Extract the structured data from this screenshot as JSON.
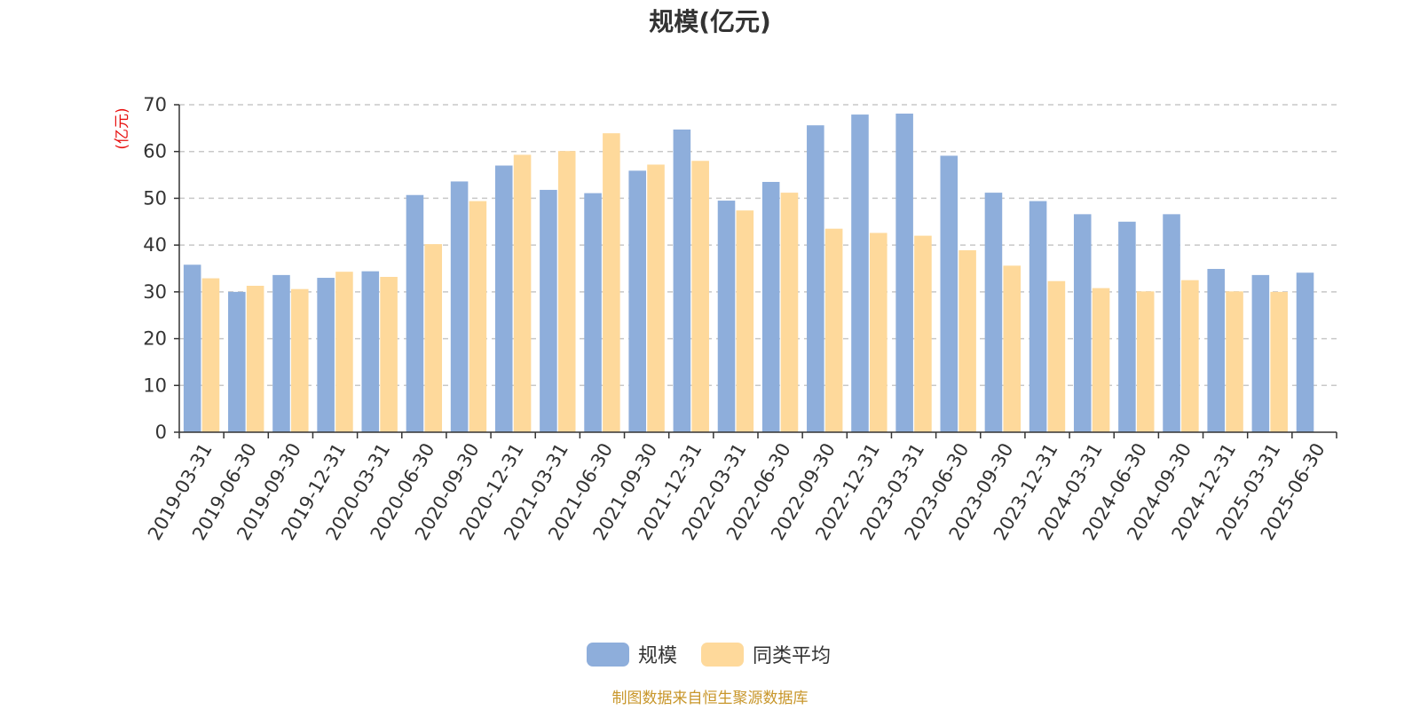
{
  "chart_data": {
    "type": "bar",
    "title": "规模(亿元)",
    "ylabel": "(亿元)",
    "ylim": [
      0,
      70
    ],
    "yticks": [
      0,
      10,
      20,
      30,
      40,
      50,
      60,
      70
    ],
    "grid": true,
    "legend_position": "bottom",
    "categories": [
      "2019-03-31",
      "2019-06-30",
      "2019-09-30",
      "2019-12-31",
      "2020-03-31",
      "2020-06-30",
      "2020-09-30",
      "2020-12-31",
      "2021-03-31",
      "2021-06-30",
      "2021-09-30",
      "2021-12-31",
      "2022-03-31",
      "2022-06-30",
      "2022-09-30",
      "2022-12-31",
      "2023-03-31",
      "2023-06-30",
      "2023-09-30",
      "2023-12-31",
      "2024-03-31",
      "2024-06-30",
      "2024-09-30",
      "2024-12-31",
      "2025-03-31",
      "2025-06-30"
    ],
    "series": [
      {
        "name": "规模",
        "color": "#8eaedb",
        "values": [
          35.8,
          30.0,
          33.6,
          33.0,
          34.4,
          50.7,
          53.6,
          57.0,
          51.8,
          51.1,
          55.9,
          64.7,
          49.5,
          53.5,
          65.6,
          67.9,
          68.1,
          59.1,
          51.2,
          49.4,
          46.6,
          45.0,
          46.6,
          34.9,
          33.6,
          34.1
        ]
      },
      {
        "name": "同类平均",
        "color": "#fed99b",
        "values": [
          32.9,
          31.3,
          30.6,
          34.3,
          33.2,
          40.2,
          49.4,
          59.3,
          60.1,
          63.9,
          57.2,
          58.0,
          47.4,
          51.2,
          43.5,
          42.6,
          42.0,
          38.9,
          35.6,
          32.3,
          30.8,
          30.1,
          32.5,
          30.1,
          30.0,
          null
        ]
      }
    ]
  },
  "footer": {
    "source": "制图数据来自恒生聚源数据库"
  }
}
